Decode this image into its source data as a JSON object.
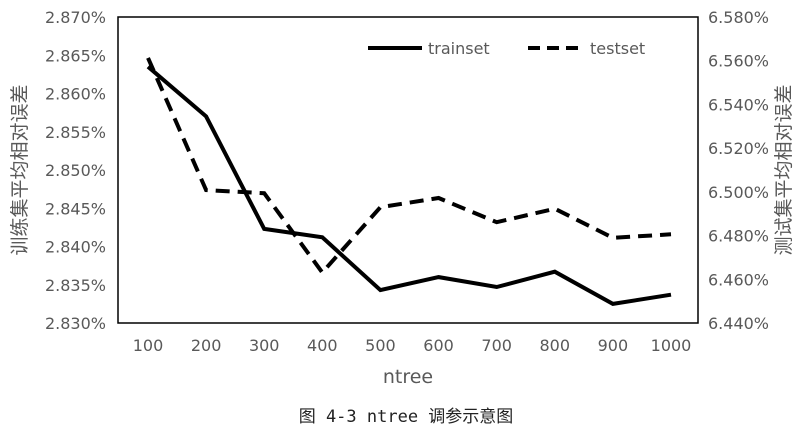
{
  "caption": "图 4-3 ntree 调参示意图",
  "chart_data": {
    "type": "line",
    "xlabel": "ntree",
    "ylabel_left": "训练集平均相对误差",
    "ylabel_right": "测试集平均相对误差",
    "x": [
      100,
      200,
      300,
      400,
      500,
      600,
      700,
      800,
      900,
      1000
    ],
    "y_left_ticks": [
      "2.830%",
      "2.835%",
      "2.840%",
      "2.845%",
      "2.850%",
      "2.855%",
      "2.860%",
      "2.865%",
      "2.870%"
    ],
    "y_right_ticks": [
      "6.440%",
      "6.460%",
      "6.480%",
      "6.500%",
      "6.520%",
      "6.540%",
      "6.560%",
      "6.580%"
    ],
    "ylim_left": [
      2.83,
      2.87
    ],
    "ylim_right": [
      6.44,
      6.58
    ],
    "grid": false,
    "legend_position": "top-right",
    "series": [
      {
        "name": "trainset",
        "axis": "left",
        "style": "solid",
        "color": "#000000",
        "values": [
          2.8635,
          2.857,
          2.8423,
          2.8412,
          2.8343,
          2.836,
          2.8347,
          2.8367,
          2.8325,
          2.8337
        ]
      },
      {
        "name": "testset",
        "axis": "right",
        "style": "dashed",
        "color": "#000000",
        "values": [
          6.5613,
          6.5008,
          6.4994,
          6.4631,
          6.493,
          6.4972,
          6.4861,
          6.4923,
          6.479,
          6.4806
        ]
      }
    ]
  }
}
